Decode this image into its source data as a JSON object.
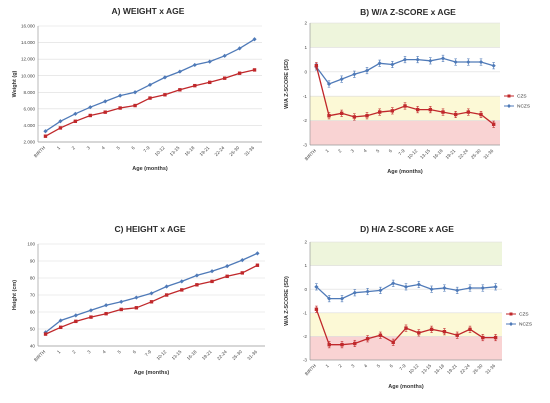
{
  "colors": {
    "czs": "#c0282b",
    "nczs": "#4f7ab8",
    "band_green": "#eef5dc",
    "band_yellow": "#fcf9d6",
    "band_red": "#f9d3d3",
    "grid": "#dcdcdc",
    "axis": "#9a9a9a"
  },
  "chart_data": [
    {
      "type": "line",
      "title": "A) WEIGHT x AGE",
      "xlabel": "Age (months)",
      "ylabel": "Weight (g)",
      "ylim": [
        2000,
        16000
      ],
      "yticks": [
        "2.000",
        "4.000",
        "6.000",
        "8.000",
        "10.000",
        "12.000",
        "14.000",
        "16.000"
      ],
      "categories": [
        "BIRTH",
        "1",
        "2",
        "3",
        "4",
        "5",
        "6",
        "7-9",
        "10-12",
        "13-15",
        "16-18",
        "19-21",
        "22-24",
        "25-30",
        "31-36"
      ],
      "grid": true,
      "legend": "none",
      "series": [
        {
          "key": "nczs",
          "values": [
            3300,
            4500,
            5400,
            6200,
            6900,
            7600,
            8000,
            8900,
            9800,
            10500,
            11300,
            11700,
            12400,
            13300,
            14400
          ]
        },
        {
          "key": "czs",
          "values": [
            2700,
            3700,
            4500,
            5200,
            5600,
            6100,
            6400,
            7300,
            7700,
            8300,
            8800,
            9200,
            9700,
            10300,
            10700
          ]
        }
      ]
    },
    {
      "type": "line",
      "title": "B) W/A Z-SCORE x AGE",
      "xlabel": "Age (months)",
      "ylabel": "W/A Z-SCORE (SD)",
      "ylim": [
        -3,
        2
      ],
      "yticks": [
        "-3",
        "-2",
        "-1",
        "0",
        "1",
        "2"
      ],
      "categories": [
        "BIRTH",
        "1",
        "2",
        "3",
        "4",
        "5",
        "6",
        "7-9",
        "10-12",
        "13-15",
        "16-18",
        "19-21",
        "22-24",
        "25-30",
        "31-36"
      ],
      "grid": true,
      "legend": "right",
      "legend_labels": [
        "CZS",
        "NCZS"
      ],
      "series": [
        {
          "key": "nczs",
          "values": [
            0.2,
            -0.5,
            -0.3,
            -0.1,
            0.05,
            0.35,
            0.3,
            0.5,
            0.5,
            0.45,
            0.55,
            0.4,
            0.4,
            0.4,
            0.25
          ]
        },
        {
          "key": "czs",
          "values": [
            0.25,
            -1.8,
            -1.7,
            -1.85,
            -1.8,
            -1.65,
            -1.6,
            -1.4,
            -1.55,
            -1.55,
            -1.65,
            -1.75,
            -1.65,
            -1.75,
            -2.15
          ]
        }
      ]
    },
    {
      "type": "line",
      "title": "C) HEIGHT x AGE",
      "xlabel": "Age (months)",
      "ylabel": "Height (cm)",
      "ylim": [
        40,
        100
      ],
      "yticks": [
        "40",
        "50",
        "60",
        "70",
        "80",
        "90",
        "100"
      ],
      "categories": [
        "BIRTH",
        "1",
        "2",
        "3",
        "4",
        "5",
        "6",
        "7-9",
        "10-12",
        "13-15",
        "16-18",
        "19-21",
        "22-24",
        "25-30",
        "31-36"
      ],
      "grid": true,
      "legend": "none",
      "series": [
        {
          "key": "nczs",
          "values": [
            48,
            55,
            58,
            61,
            64,
            66,
            68.5,
            71,
            75,
            78,
            81.5,
            84,
            87,
            90.5,
            94.5
          ]
        },
        {
          "key": "czs",
          "values": [
            47,
            51,
            54.5,
            57,
            59,
            61.5,
            62.5,
            66,
            70,
            73,
            76,
            78,
            81,
            83,
            87.5
          ]
        }
      ]
    },
    {
      "type": "line",
      "title": "D) H/A Z-SCORE x AGE",
      "xlabel": "Age (months)",
      "ylabel": "W/A Z-SCORE (SD)",
      "ylim": [
        -3,
        2
      ],
      "yticks": [
        "-3",
        "-2",
        "-1",
        "0",
        "1",
        "2"
      ],
      "categories": [
        "BIRTH",
        "1",
        "2",
        "3",
        "4",
        "5",
        "6",
        "7-9",
        "10-12",
        "13-15",
        "16-18",
        "19-21",
        "22-24",
        "25-30",
        "31-36"
      ],
      "grid": true,
      "legend": "right",
      "legend_labels": [
        "CZS",
        "NCZS"
      ],
      "series": [
        {
          "key": "nczs",
          "values": [
            0.1,
            -0.4,
            -0.4,
            -0.15,
            -0.1,
            -0.05,
            0.25,
            0.1,
            0.2,
            0.0,
            0.05,
            -0.05,
            0.05,
            0.05,
            0.1
          ]
        },
        {
          "key": "czs",
          "values": [
            -0.85,
            -2.35,
            -2.35,
            -2.3,
            -2.1,
            -1.95,
            -2.25,
            -1.65,
            -1.85,
            -1.7,
            -1.8,
            -1.95,
            -1.7,
            -2.05,
            -2.05
          ]
        }
      ]
    }
  ]
}
